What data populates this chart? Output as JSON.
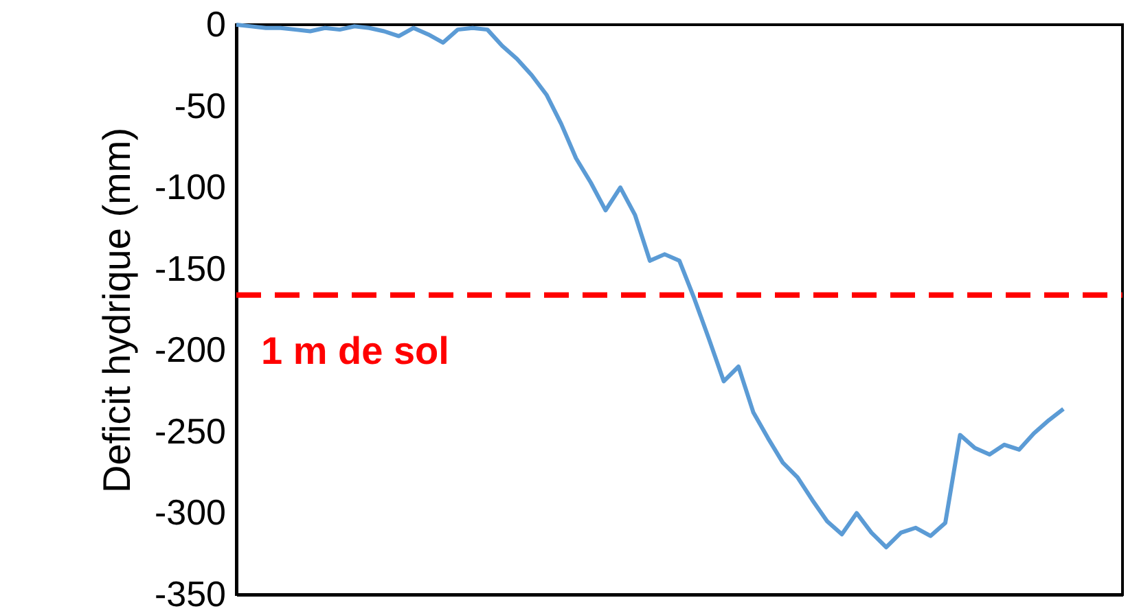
{
  "chart_data": {
    "type": "line",
    "ylabel": "Deficit hydrique (mm)",
    "categories": [
      null,
      null,
      null,
      null,
      null,
      null,
      null,
      null,
      null,
      null,
      null,
      null,
      null,
      null,
      null,
      null,
      null,
      null,
      null,
      null,
      null,
      null,
      null,
      null,
      null,
      null,
      null,
      null,
      null,
      null,
      null,
      null,
      null,
      null,
      null,
      null,
      null,
      null,
      null,
      null,
      null,
      null,
      null,
      null,
      null,
      null,
      null,
      null,
      null,
      null,
      null,
      null,
      null,
      null,
      null,
      null,
      null,
      null,
      null,
      null,
      null
    ],
    "series": [
      {
        "color": "#5b9bd5",
        "values": [
          0,
          -1,
          -2,
          -2,
          -3,
          -4,
          -2,
          -3,
          -1,
          -2,
          -4,
          -7,
          -2,
          -6,
          -11,
          -3,
          -2,
          -3,
          -13,
          -21,
          -31,
          -43,
          -61,
          -82,
          -97,
          -114,
          -100,
          -117,
          -145,
          -141,
          -145,
          -168,
          -193,
          -219,
          -210,
          -238,
          -254,
          -269,
          -278,
          -292,
          -305,
          -313,
          -300,
          -312,
          -321,
          -312,
          -309,
          -314,
          -306,
          -252,
          -260,
          -264,
          -258,
          -261,
          -251,
          -243,
          -236,
          null,
          null,
          null,
          null
        ]
      }
    ],
    "ylim": [
      -350,
      0
    ],
    "yticks": [
      0,
      -50,
      -100,
      -150,
      -200,
      -250,
      -300,
      -350
    ],
    "ref_lines": [
      {
        "axis": "y",
        "value": -166,
        "label": "1 m de sol",
        "color": "#ff0000",
        "line_style": "dashed"
      }
    ],
    "tick_labels": "y",
    "grid": false,
    "marker": "none",
    "line_style": "solid"
  }
}
